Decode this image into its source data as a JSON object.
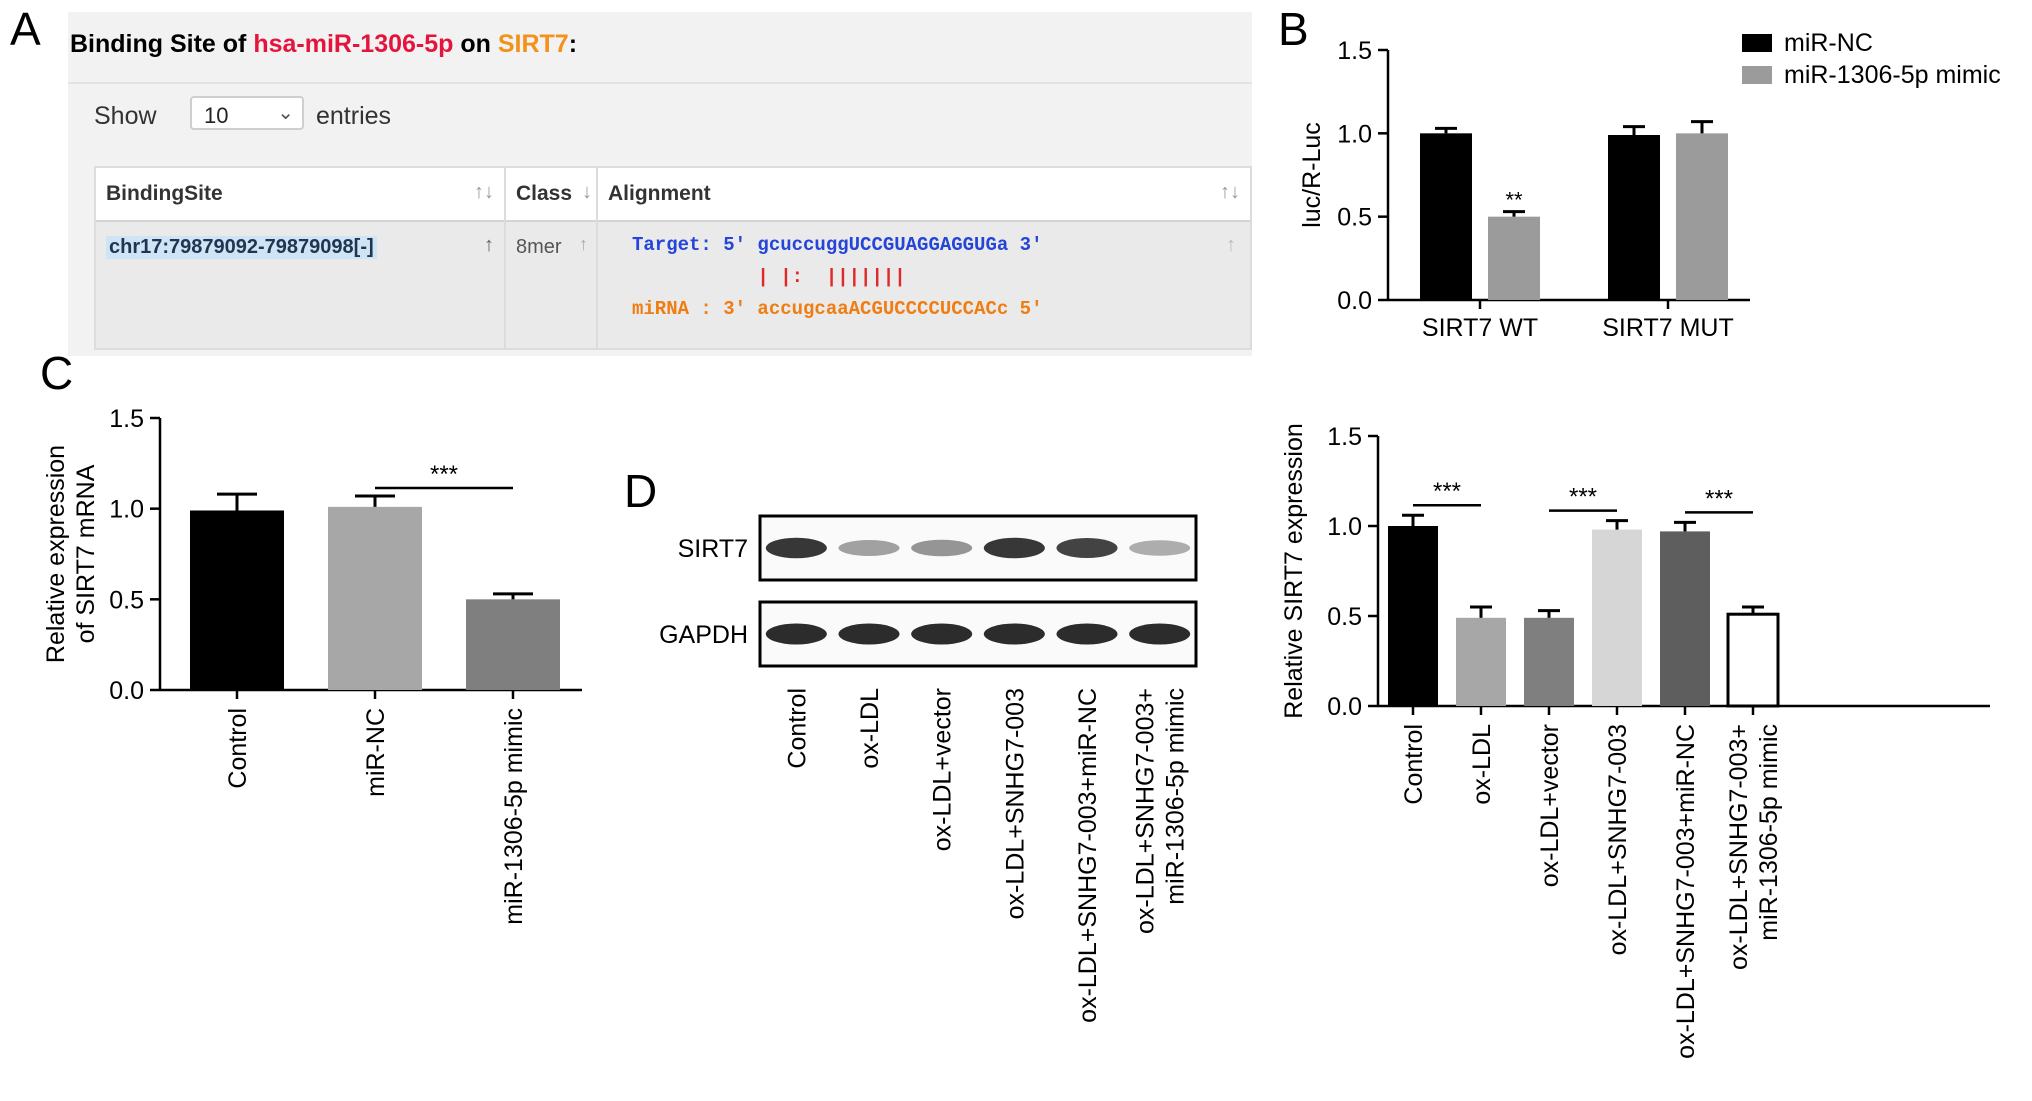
{
  "panel_labels": {
    "a": "A",
    "b": "B",
    "c": "C",
    "d": "D"
  },
  "binding_widget": {
    "title_prefix": "Binding Site of ",
    "mirna": "hsa-miR-1306-5p",
    "title_mid": " on ",
    "gene": "SIRT7",
    "title_suffix": ":",
    "show_label": "Show",
    "entries_value": "10",
    "entries_label": "entries",
    "columns": [
      "BindingSite",
      "Class",
      "Alignment"
    ],
    "row": {
      "binding_site": "chr17:79879092-79879098[-]",
      "class": "8mer",
      "target_line": "Target: 5' gcuccuggUCCGUAGGAGGUGa 3'",
      "pair_line": "           | |:  |||||||",
      "mirna_line": "miRNA : 3' accugcaaACGUCCCCUCCACc 5'"
    },
    "colors": {
      "mirna": "#e5143c",
      "gene": "#f2921a",
      "target": "#2445d8",
      "mirna_seq": "#f07d12",
      "pairs": "#e02828"
    }
  },
  "chart_data": [
    {
      "id": "B",
      "type": "bar",
      "ylabel": "luc/R-Luc",
      "ylim": [
        0,
        1.5
      ],
      "yticks": [
        "0.0",
        "0.5",
        "1.0",
        "1.5"
      ],
      "categories": [
        "SIRT7 WT",
        "SIRT7 MUT"
      ],
      "series": [
        {
          "name": "miR-NC",
          "color": "#000000",
          "values": [
            1.0,
            0.99
          ],
          "errors": [
            0.03,
            0.05
          ]
        },
        {
          "name": "miR-1306-5p mimic",
          "color": "#9b9b9b",
          "values": [
            0.5,
            1.0
          ],
          "errors": [
            0.03,
            0.07
          ]
        }
      ],
      "annotations": [
        {
          "label": "**",
          "category": 0,
          "series": 1
        }
      ],
      "legend": "top-right"
    },
    {
      "id": "C",
      "type": "bar",
      "ylabel": "Relative expression of SIRT7 mRNA",
      "ylabel_lines": [
        "Relative expression",
        "of SIRT7 mRNA"
      ],
      "ylim": [
        0,
        1.5
      ],
      "yticks": [
        "0.0",
        "0.5",
        "1.0",
        "1.5"
      ],
      "categories": [
        "Control",
        "miR-NC",
        "miR-1306-5p mimic"
      ],
      "values": [
        0.99,
        1.01,
        0.5
      ],
      "errors": [
        0.09,
        0.06,
        0.03
      ],
      "colors": [
        "#000000",
        "#a7a7a7",
        "#7f7f7f"
      ],
      "significance": [
        {
          "from": 1,
          "to": 2,
          "label": "***"
        }
      ]
    },
    {
      "id": "D-blot",
      "type": "table",
      "rows": [
        "SIRT7",
        "GAPDH"
      ],
      "lanes": [
        "Control",
        "ox-LDL",
        "ox-LDL+vector",
        "ox-LDL+SNHG7-003",
        "ox-LDL+SNHG7-003+miR-NC",
        "ox-LDL+SNHG7-003+ miR-1306-5p mimic"
      ],
      "lane_lines": [
        [
          "Control"
        ],
        [
          "ox-LDL"
        ],
        [
          "ox-LDL+vector"
        ],
        [
          "ox-LDL+SNHG7-003"
        ],
        [
          "ox-LDL+SNHG7-003+miR-NC"
        ],
        [
          "ox-LDL+SNHG7-003+",
          "miR-1306-5p mimic"
        ]
      ],
      "band_intensity": {
        "SIRT7": [
          0.85,
          0.4,
          0.45,
          0.85,
          0.8,
          0.35
        ],
        "GAPDH": [
          0.9,
          0.9,
          0.9,
          0.9,
          0.9,
          0.9
        ]
      }
    },
    {
      "id": "D",
      "type": "bar",
      "ylabel": "Relative SIRT7 expression",
      "ylim": [
        0,
        1.5
      ],
      "yticks": [
        "0.0",
        "0.5",
        "1.0",
        "1.5"
      ],
      "categories": [
        "Control",
        "ox-LDL",
        "ox-LDL+vector",
        "ox-LDL+SNHG7-003",
        "ox-LDL+SNHG7-003+miR-NC",
        "ox-LDL+SNHG7-003+ miR-1306-5p mimic"
      ],
      "category_lines": [
        [
          "Control"
        ],
        [
          "ox-LDL"
        ],
        [
          "ox-LDL+vector"
        ],
        [
          "ox-LDL+SNHG7-003"
        ],
        [
          "ox-LDL+SNHG7-003+miR-NC"
        ],
        [
          "ox-LDL+SNHG7-003+",
          "miR-1306-5p mimic"
        ]
      ],
      "values": [
        1.0,
        0.49,
        0.49,
        0.98,
        0.97,
        0.51
      ],
      "errors": [
        0.06,
        0.06,
        0.04,
        0.05,
        0.05,
        0.04
      ],
      "colors": [
        "#000000",
        "#a7a7a7",
        "#7f7f7f",
        "#d6d6d6",
        "#5e5e5e",
        "#ffffff"
      ],
      "significance": [
        {
          "from": 0,
          "to": 1,
          "label": "***"
        },
        {
          "from": 2,
          "to": 3,
          "label": "***"
        },
        {
          "from": 4,
          "to": 5,
          "label": "***"
        }
      ]
    }
  ]
}
